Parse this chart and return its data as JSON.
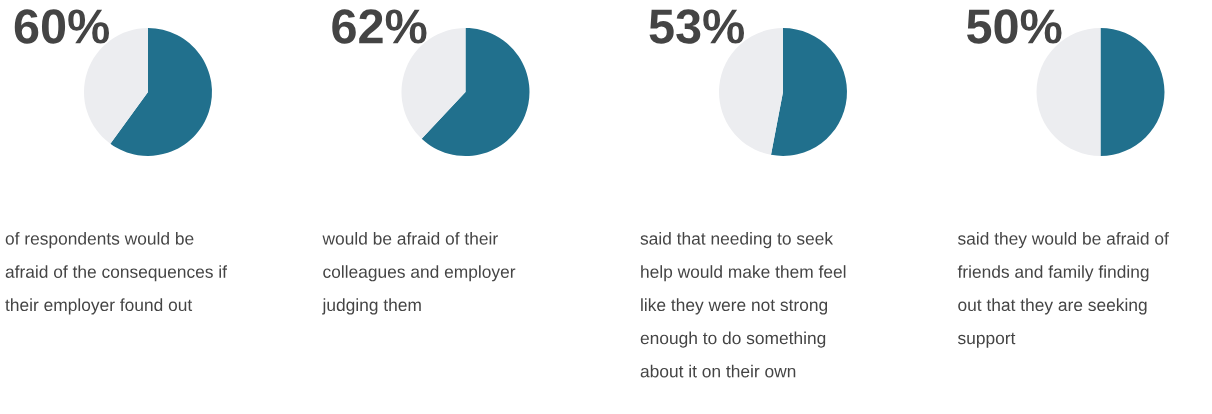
{
  "chart_data": [
    {
      "type": "pie",
      "title": "60%",
      "categories": [
        null,
        null
      ],
      "values": [
        60,
        40
      ],
      "colors": [
        "#21708d",
        "#ecedf0"
      ],
      "annotations": [
        "of respondents would be\nafraid of the consequences if\ntheir employer found out"
      ]
    },
    {
      "type": "pie",
      "title": "62%",
      "categories": [
        null,
        null
      ],
      "values": [
        62,
        38
      ],
      "colors": [
        "#21708d",
        "#ecedf0"
      ],
      "annotations": [
        "would be afraid of their\ncolleagues and employer\njudging them"
      ]
    },
    {
      "type": "pie",
      "title": "53%",
      "categories": [
        null,
        null
      ],
      "values": [
        53,
        47
      ],
      "colors": [
        "#21708d",
        "#ecedf0"
      ],
      "annotations": [
        "said that needing to seek\nhelp would make them feel\nlike they were not strong\nenough to do something\nabout it on their own"
      ]
    },
    {
      "type": "pie",
      "title": "50%",
      "categories": [
        null,
        null
      ],
      "values": [
        50,
        50
      ],
      "colors": [
        "#21708d",
        "#ecedf0"
      ],
      "annotations": [
        "said they would be afraid of\nfriends and family finding\nout that they are seeking\nsupport"
      ]
    }
  ]
}
